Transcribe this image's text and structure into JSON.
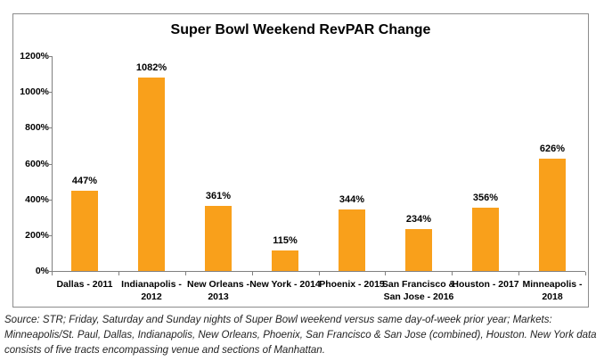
{
  "chart_data": {
    "type": "bar",
    "title": "Super Bowl Weekend RevPAR Change",
    "categories": [
      "Dallas - 2011",
      "Indianapolis - 2012",
      "New Orleans - 2013",
      "New York - 2014",
      "Phoenix - 2015",
      "San Francisco & San Jose - 2016",
      "Houston - 2017",
      "Minneapolis - 2018"
    ],
    "category_label_lines": [
      [
        "Dallas - 2011"
      ],
      [
        "Indianapolis -",
        "2012"
      ],
      [
        "New Orleans -",
        "2013"
      ],
      [
        "New York - 2014"
      ],
      [
        "Phoenix - 2015"
      ],
      [
        "San Francisco &",
        "San Jose - 2016"
      ],
      [
        "Houston - 2017"
      ],
      [
        "Minneapolis -",
        "2018"
      ]
    ],
    "values": [
      447,
      1082,
      361,
      115,
      344,
      234,
      356,
      626
    ],
    "value_labels": [
      "447%",
      "1082%",
      "361%",
      "115%",
      "344%",
      "234%",
      "356%",
      "626%"
    ],
    "xlabel": "",
    "ylabel": "",
    "ylim": [
      0,
      1200
    ],
    "ytick_step": 200,
    "ytick_labels": [
      "0%",
      "200%",
      "400%",
      "600%",
      "800%",
      "1000%",
      "1200%"
    ],
    "bar_color": "#F9A01B",
    "grid": false,
    "legend": null
  },
  "footer": {
    "source_text": "Source: STR; Friday, Saturday and Sunday nights of Super Bowl weekend versus same day-of-week prior year; Markets: Minneapolis/St. Paul, Dallas, Indianapolis, New Orleans, Phoenix, San Francisco & San Jose (combined), Houston. New York data consists of five tracts encompassing venue and sections of Manhattan."
  }
}
